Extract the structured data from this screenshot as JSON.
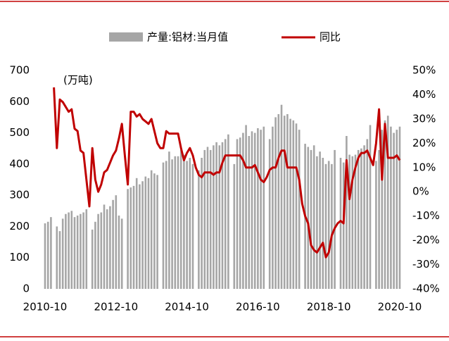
{
  "chart_data": {
    "type": "bar-line",
    "annotation": "(万吨)",
    "categories": [
      "2010-10",
      null,
      null,
      null,
      null,
      null,
      null,
      null,
      null,
      null,
      null,
      null,
      null,
      null,
      null,
      null,
      null,
      null,
      null,
      null,
      null,
      null,
      null,
      null,
      "2012-10",
      null,
      null,
      null,
      null,
      null,
      null,
      null,
      null,
      null,
      null,
      null,
      null,
      null,
      null,
      null,
      null,
      null,
      null,
      null,
      null,
      null,
      null,
      null,
      "2014-10",
      null,
      null,
      null,
      null,
      null,
      null,
      null,
      null,
      null,
      null,
      null,
      null,
      null,
      null,
      null,
      null,
      null,
      null,
      null,
      null,
      null,
      null,
      null,
      "2016-10",
      null,
      null,
      null,
      null,
      null,
      null,
      null,
      null,
      null,
      null,
      null,
      null,
      null,
      null,
      null,
      null,
      null,
      null,
      null,
      null,
      null,
      null,
      null,
      "2018-10",
      null,
      null,
      null,
      null,
      null,
      null,
      null,
      null,
      null,
      null,
      null,
      null,
      null,
      null,
      null,
      null,
      null,
      null,
      null,
      null,
      null,
      null,
      null,
      "2020-10"
    ],
    "series": [
      {
        "name": "产量:铝材:当月值",
        "type": "bar",
        "color": "#a6a6a6",
        "values": [
          210,
          215,
          230,
          null,
          200,
          185,
          225,
          240,
          245,
          250,
          230,
          235,
          240,
          245,
          255,
          null,
          190,
          215,
          240,
          245,
          270,
          255,
          265,
          285,
          300,
          235,
          225,
          null,
          320,
          325,
          330,
          355,
          335,
          345,
          360,
          355,
          380,
          370,
          365,
          null,
          405,
          410,
          440,
          415,
          425,
          425,
          445,
          430,
          410,
          420,
          400,
          null,
          380,
          420,
          445,
          455,
          445,
          460,
          470,
          460,
          470,
          480,
          495,
          null,
          400,
          480,
          485,
          500,
          525,
          490,
          505,
          500,
          515,
          510,
          520,
          null,
          480,
          520,
          550,
          560,
          590,
          555,
          560,
          545,
          540,
          530,
          510,
          null,
          465,
          455,
          445,
          460,
          425,
          440,
          420,
          400,
          410,
          400,
          445,
          null,
          420,
          405,
          490,
          430,
          425,
          430,
          445,
          450,
          460,
          480,
          525,
          null,
          410,
          445,
          510,
          540,
          555,
          520,
          500,
          510,
          520
        ]
      },
      {
        "name": "同比",
        "type": "line",
        "axis": "y2",
        "color": "#c00000",
        "values": [
          null,
          null,
          null,
          43,
          18,
          38,
          37,
          35,
          33,
          34,
          26,
          25,
          17,
          16,
          5,
          -6,
          18,
          5,
          0,
          3,
          8,
          9,
          12,
          15,
          17,
          22,
          28,
          15,
          3,
          33,
          33,
          31,
          32,
          30,
          29,
          28,
          30,
          25,
          20,
          18,
          18,
          25,
          24,
          24,
          24,
          24,
          18,
          13,
          16,
          18,
          15,
          10,
          7,
          6,
          8,
          8,
          8,
          7,
          8,
          8,
          12,
          15,
          15,
          15,
          15,
          15,
          15,
          13,
          10,
          10,
          10,
          11,
          8,
          5,
          4,
          6,
          9,
          10,
          10,
          14,
          17,
          17,
          10,
          10,
          10,
          10,
          5,
          -5,
          -10,
          -13,
          -22,
          -24,
          -25,
          -23,
          -21,
          -27,
          -25,
          -18,
          -15,
          -13,
          -12,
          -13,
          13,
          -3,
          5,
          10,
          14,
          16,
          16,
          17,
          14,
          11,
          20,
          34,
          5,
          28,
          14,
          14,
          14,
          15,
          13
        ]
      }
    ],
    "ylim": [
      0,
      700
    ],
    "yticks": [
      0,
      100,
      200,
      300,
      400,
      500,
      600,
      700
    ],
    "y2lim": [
      -40,
      50
    ],
    "y2ticks": [
      {
        "value": -40,
        "label": "-40%"
      },
      {
        "value": -30,
        "label": "-30%"
      },
      {
        "value": -20,
        "label": "-20%"
      },
      {
        "value": -10,
        "label": "-10%"
      },
      {
        "value": 0,
        "label": "0%"
      },
      {
        "value": 10,
        "label": "10%"
      },
      {
        "value": 20,
        "label": "20%"
      },
      {
        "value": 30,
        "label": "30%"
      },
      {
        "value": 40,
        "label": "40%"
      },
      {
        "value": 50,
        "label": "50%"
      }
    ],
    "legend": "top"
  }
}
